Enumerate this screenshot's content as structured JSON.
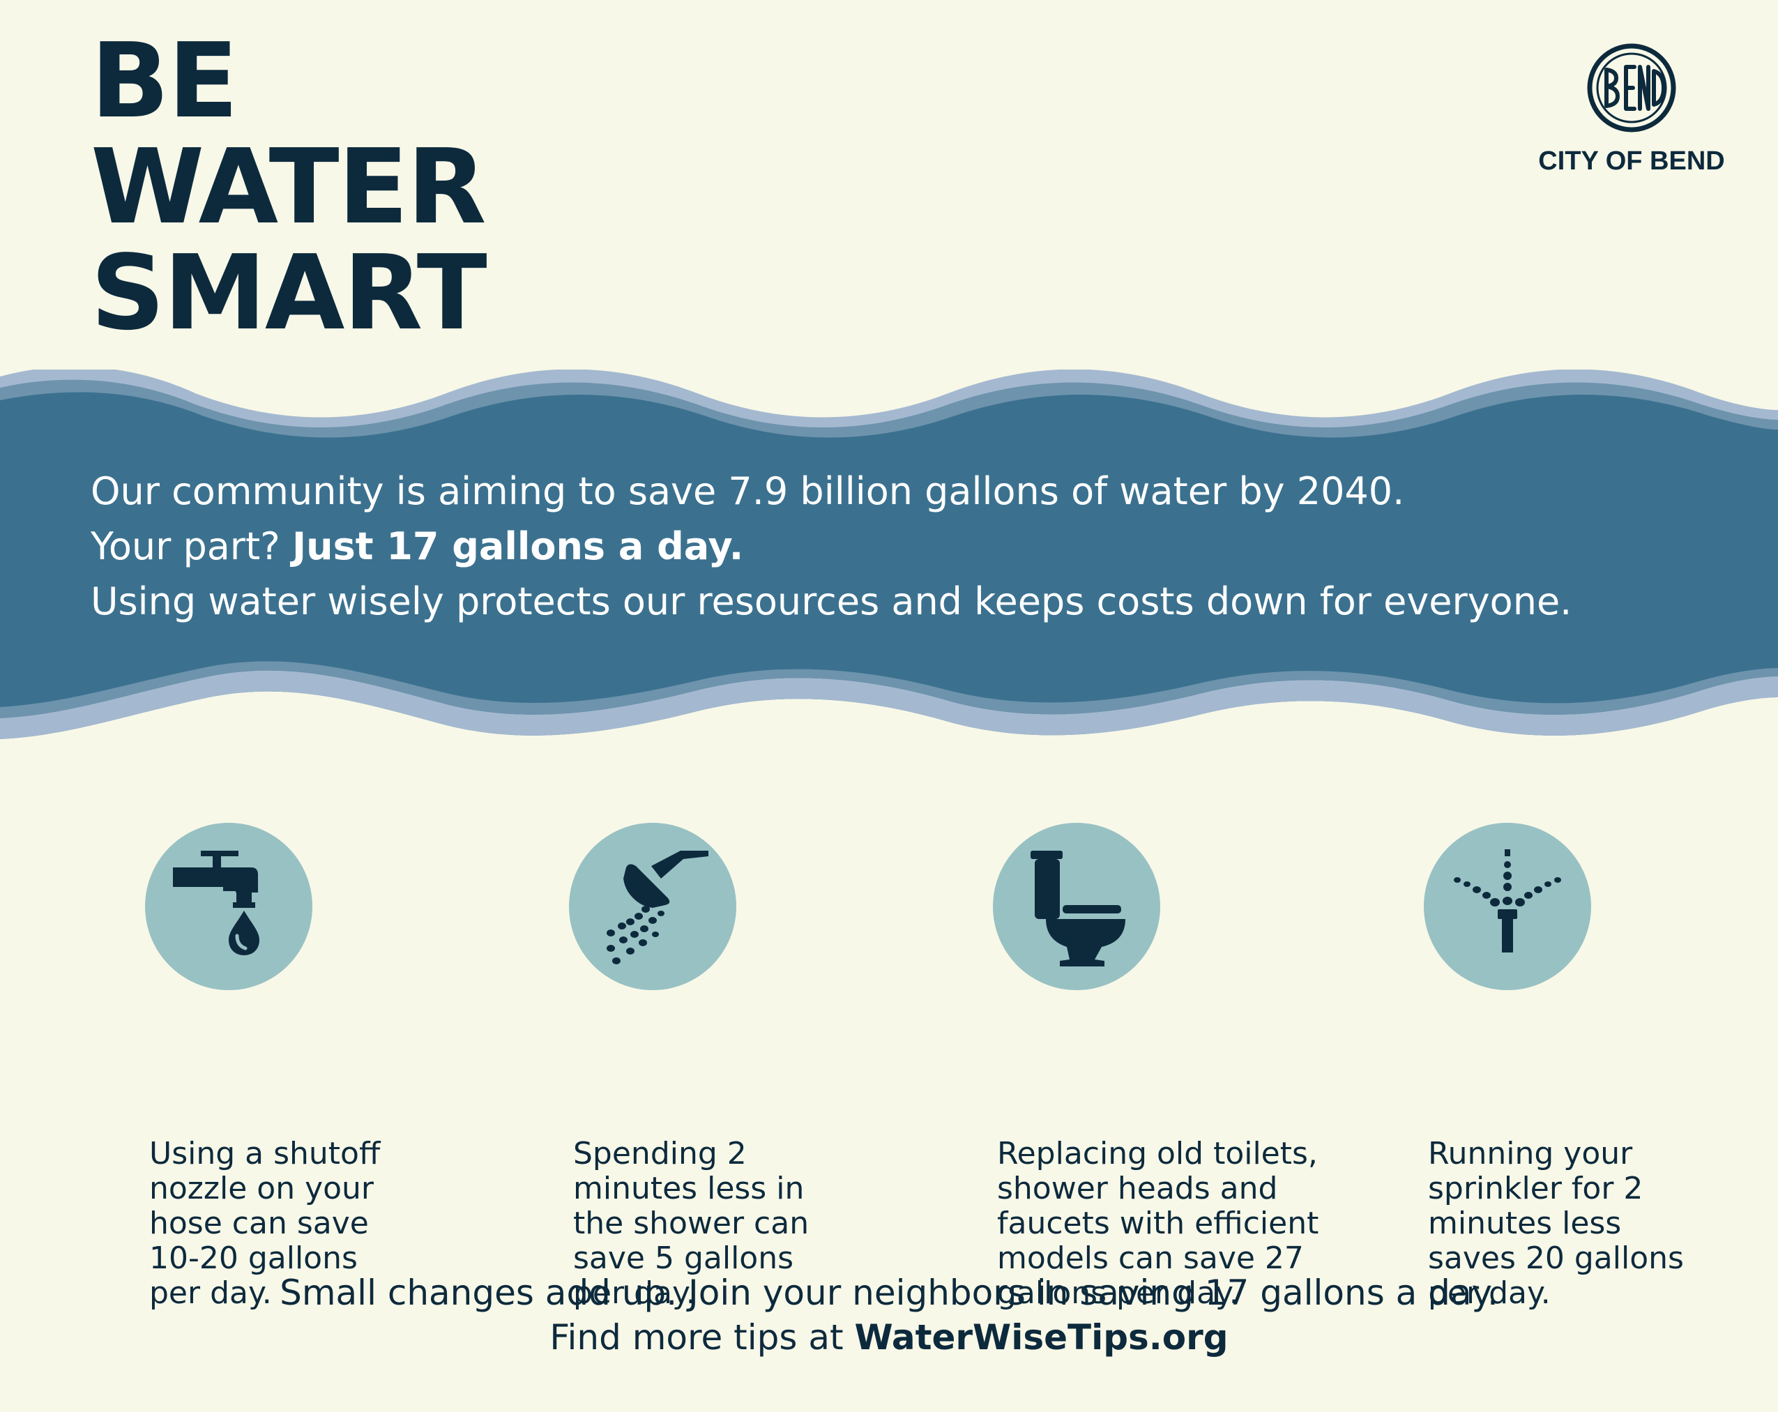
{
  "title": {
    "line1": "BE",
    "line2": "WATER",
    "line3": "SMART"
  },
  "logo": {
    "emblem_text": "BEND",
    "label": "CITY OF BEND"
  },
  "band": {
    "line1": "Our community is aiming to save 7.9 billion gallons of water by 2040.",
    "line2_prefix": "Your part?",
    "line2_bold": "Just 17 gallons a day.",
    "line3": "Using water wisely protects our resources and keeps costs down for everyone."
  },
  "tips": [
    {
      "icon": "faucet-icon",
      "lines": [
        "Using a shutoff",
        "nozzle on your",
        "hose can save",
        "10-20 gallons",
        "per day."
      ]
    },
    {
      "icon": "shower-head-icon",
      "lines": [
        "Spending 2",
        "minutes less in",
        "the shower can",
        "save 5 gallons",
        "per day."
      ]
    },
    {
      "icon": "toilet-icon",
      "lines": [
        "Replacing old toilets,",
        "shower heads and",
        "faucets with efficient",
        "models can save 27",
        "gallons per day."
      ]
    },
    {
      "icon": "sprinkler-icon",
      "lines": [
        "Running your",
        "sprinkler for 2",
        "minutes less",
        "saves 20 gallons",
        "per day."
      ]
    }
  ],
  "footer": {
    "line1": "Small changes add up. Join your neighbors in saving 17 gallons a day.",
    "line2_prefix": "Find more tips at",
    "line2_link": "WaterWiseTips.org"
  },
  "colors": {
    "background": "#f8f8e8",
    "navy": "#0d2a3d",
    "band": "#3b718f",
    "wave_light": "#a4b9d0",
    "wave_mid": "#6e93ad",
    "icon_circle": "#98c1c3"
  }
}
